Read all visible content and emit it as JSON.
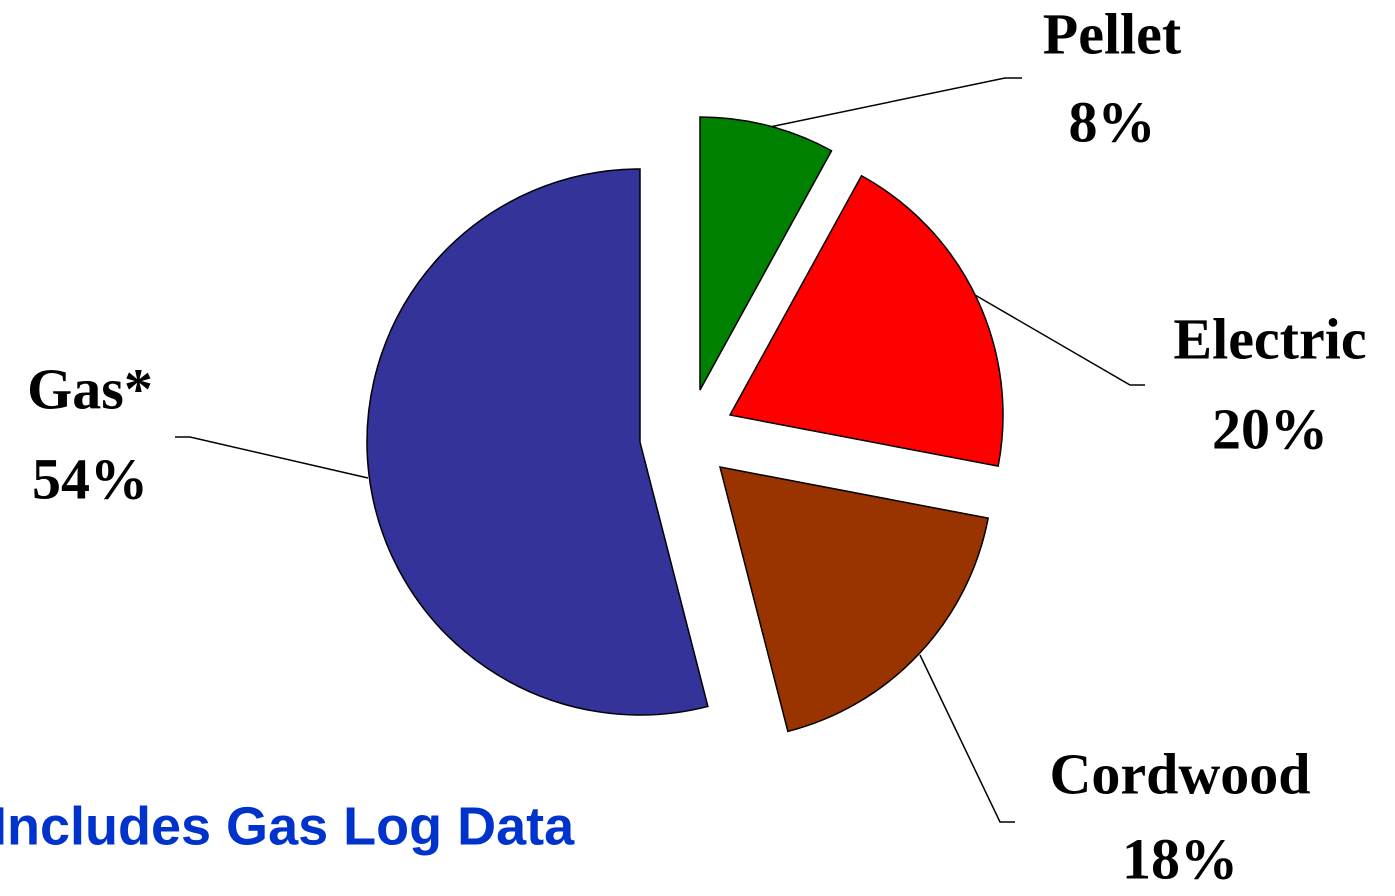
{
  "chart_data": {
    "type": "pie",
    "categories": [
      "Pellet",
      "Electric",
      "Cordwood",
      "Gas*"
    ],
    "values": [
      8,
      20,
      18,
      54
    ],
    "value_labels": [
      "8%",
      "20%",
      "18%",
      "54%"
    ],
    "colors": [
      "#008000",
      "#ff0000",
      "#993300",
      "#333399"
    ],
    "annotation": "Includes Gas Log Data"
  }
}
